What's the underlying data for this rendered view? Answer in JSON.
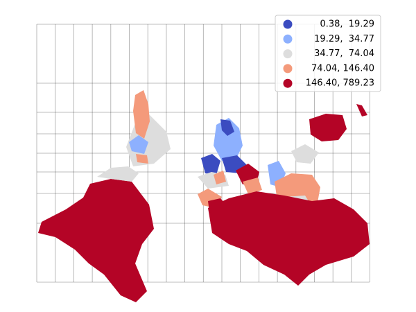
{
  "map": {
    "legend": [
      {
        "label": "0.38,  19.29",
        "color": "#3b4cc0"
      },
      {
        "label": "19.29,  34.77",
        "color": "#8db0fe"
      },
      {
        "label": "34.77,  74.04",
        "color": "#dddddd"
      },
      {
        "label": "74.04, 146.40",
        "color": "#f49a7b"
      },
      {
        "label": "146.40, 789.23",
        "color": "#b40426"
      }
    ]
  }
}
